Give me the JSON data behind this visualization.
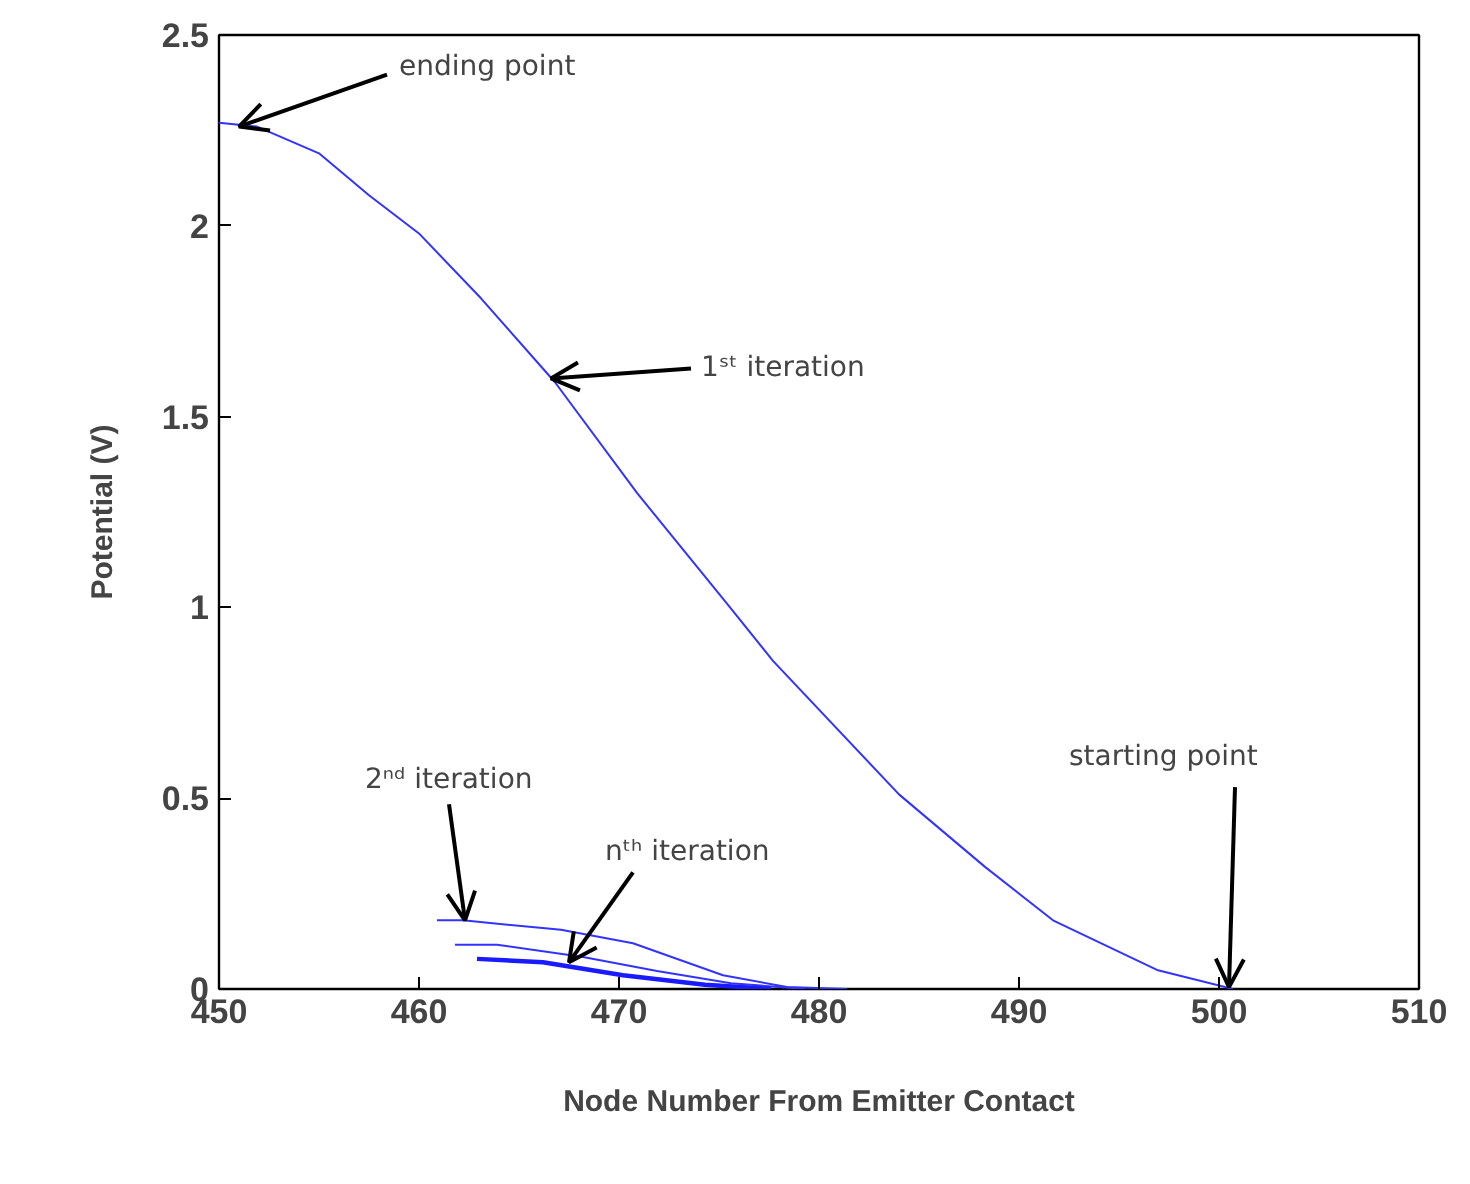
{
  "chart_data": {
    "type": "line",
    "xlabel": "Node Number From Emitter Contact",
    "ylabel": "Potential (V)",
    "xlim": [
      450,
      510
    ],
    "ylim": [
      0,
      2.5
    ],
    "xticks": [
      450,
      460,
      470,
      480,
      490,
      500,
      510
    ],
    "yticks": [
      0,
      0.5,
      1,
      1.5,
      2,
      2.5
    ],
    "grid": false,
    "marker": "none",
    "line_style": "solid",
    "series": [
      {
        "color": "#3333ff",
        "x": [
          450,
          451.9,
          455.0,
          457.5,
          460,
          463.1,
          466.8,
          470.9,
          475.4,
          477.7,
          484.0,
          488.3,
          491.7,
          496.9,
          500.7
        ],
        "values": [
          2.27,
          2.26,
          2.19,
          2.08,
          1.98,
          1.81,
          1.59,
          1.3,
          1.01,
          0.86,
          0.51,
          0.32,
          0.18,
          0.05,
          0
        ]
      },
      {
        "color": "#3333ff",
        "x": [
          460.9,
          462.2,
          467.1,
          470.7,
          475.2,
          478.4,
          481.4
        ],
        "values": [
          0.18,
          0.18,
          0.155,
          0.12,
          0.036,
          0.005,
          0
        ]
      },
      {
        "color": "#3333ff",
        "x": [
          461.8,
          463.9,
          468.2,
          471.9,
          475.6,
          479.3
        ],
        "values": [
          0.116,
          0.116,
          0.084,
          0.047,
          0.015,
          0
        ]
      },
      {
        "color": "#1a1aff",
        "x": [
          462.9,
          466.2,
          470.2,
          474.3,
          477.6
        ],
        "values": [
          0.079,
          0.07,
          0.036,
          0.011,
          0
        ]
      }
    ],
    "annotations": [
      {
        "text": "ending point",
        "x": 451,
        "y": 2.26
      },
      {
        "text": "1ˢᵗ iteration",
        "x": 466.6,
        "y": 1.6
      },
      {
        "text": "2ⁿᵈ iteration",
        "x": 462.3,
        "y": 0.18
      },
      {
        "text": "nᵗʰ iteration",
        "x": 467.5,
        "y": 0.07
      },
      {
        "text": "starting point",
        "x": 500.5,
        "y": 0.005
      }
    ]
  }
}
